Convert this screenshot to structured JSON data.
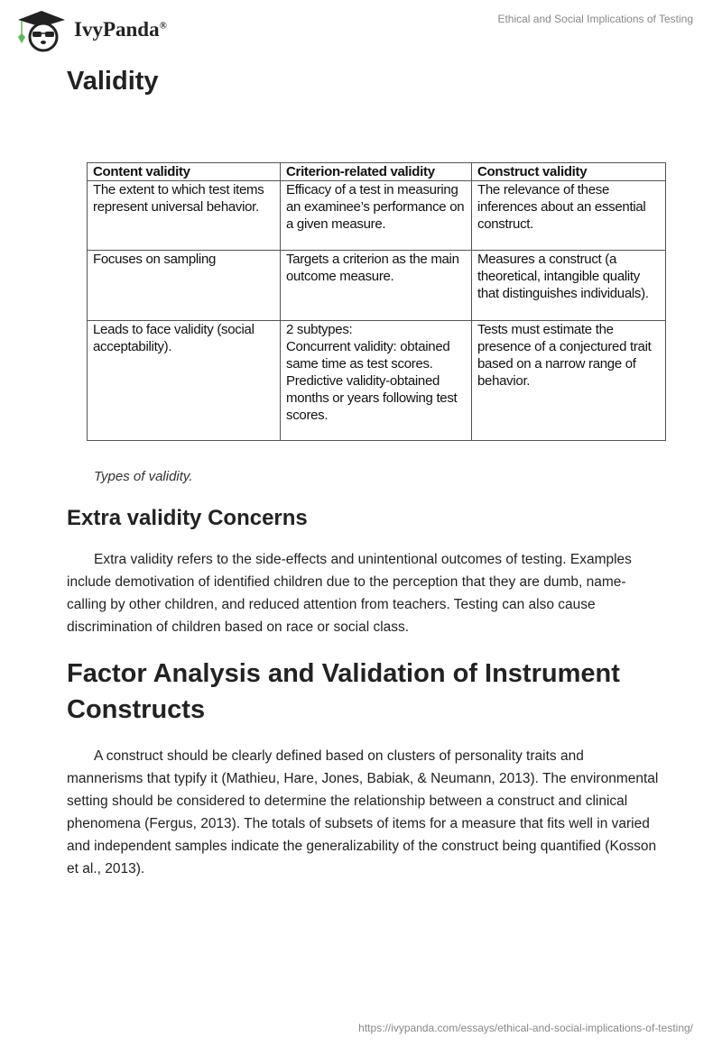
{
  "header": {
    "logo_text": "IvyPanda",
    "logo_mark": "®",
    "document_title": "Ethical and Social Implications of Testing"
  },
  "sections": {
    "validity_heading": "Validity",
    "table": {
      "headers": [
        "Content validity",
        "Criterion-related validity",
        "Construct validity"
      ],
      "rows": [
        [
          "The extent to which test items represent universal behavior.",
          "Efficacy of a test in measuring an examinee’s performance on a given measure.",
          "The relevance of these inferences about an essential construct."
        ],
        [
          "Focuses on sampling",
          "Targets a criterion as the main outcome measure.",
          "Measures a construct (a theoretical, intangible quality that distinguishes individuals)."
        ],
        [
          "Leads to face validity (social acceptability).",
          "2 subtypes:\nConcurrent validity: obtained same time as test scores.\nPredictive validity-obtained months or years following test scores.",
          "Tests must estimate the presence of a conjectured trait based on a narrow range of behavior."
        ]
      ]
    },
    "table_caption": "Types of validity.",
    "extra_heading": "Extra validity Concerns",
    "extra_paragraph": "Extra validity refers to the side-effects and unintentional outcomes of testing. Examples include demotivation of identified children due to the perception that they are dumb, name-calling by other children, and reduced attention from teachers. Testing can also cause discrimination of children based on race or social class.",
    "factor_heading": "Factor Analysis and Validation of Instrument Constructs",
    "factor_paragraph": "A construct should be clearly defined based on clusters of personality traits and mannerisms that typify it (Mathieu, Hare, Jones, Babiak, & Neumann, 2013). The environmental setting should be considered to determine the relationship between a construct and clinical phenomena (Fergus, 2013). The totals of subsets of items for a measure that fits well in varied and independent samples indicate the generalizability of the construct being quantified (Kosson et al., 2013)."
  },
  "footer": {
    "url": "https://ivypanda.com/essays/ethical-and-social-implications-of-testing/"
  },
  "colors": {
    "text": "#222222",
    "muted": "#888888",
    "logo_green": "#5cb85c"
  }
}
